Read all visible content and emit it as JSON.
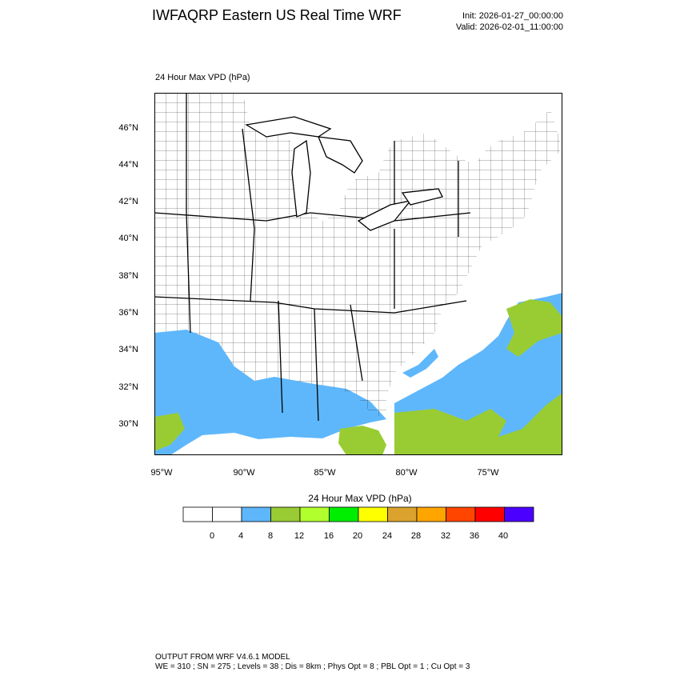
{
  "header": {
    "title": "IWFAQRP Eastern US Real Time WRF",
    "init": "Init: 2026-01-27_00:00:00",
    "valid": "Valid: 2026-02-01_11:00:00"
  },
  "map": {
    "field_label": "24 Hour Max VPD   (hPa)",
    "lat_labels": [
      "46°N",
      "44°N",
      "42°N",
      "40°N",
      "38°N",
      "36°N",
      "34°N",
      "32°N",
      "30°N"
    ],
    "lon_labels": [
      "95°W",
      "90°W",
      "85°W",
      "80°W",
      "75°W"
    ],
    "colors": {
      "blue": "#5fb7fb",
      "green": "#99cc33",
      "border": "#000000"
    }
  },
  "colorbar": {
    "title": "24 Hour Max VPD  (hPa)",
    "labels": [
      "0",
      "4",
      "8",
      "12",
      "16",
      "20",
      "24",
      "28",
      "32",
      "36",
      "40"
    ],
    "colors": [
      "#ffffff",
      "#ffffff",
      "#5fb7fb",
      "#99cc33",
      "#b2ff2e",
      "#00ee00",
      "#ffff00",
      "#dba32d",
      "#ffa500",
      "#ff4500",
      "#ff0000",
      "#4b00ff"
    ]
  },
  "footer": {
    "line1": "OUTPUT FROM WRF V4.6.1 MODEL",
    "line2": "WE = 310 ; SN = 275 ; Levels = 38 ; Dis = 8km ; Phys Opt = 8 ; PBL Opt = 1 ; Cu Opt = 3"
  }
}
